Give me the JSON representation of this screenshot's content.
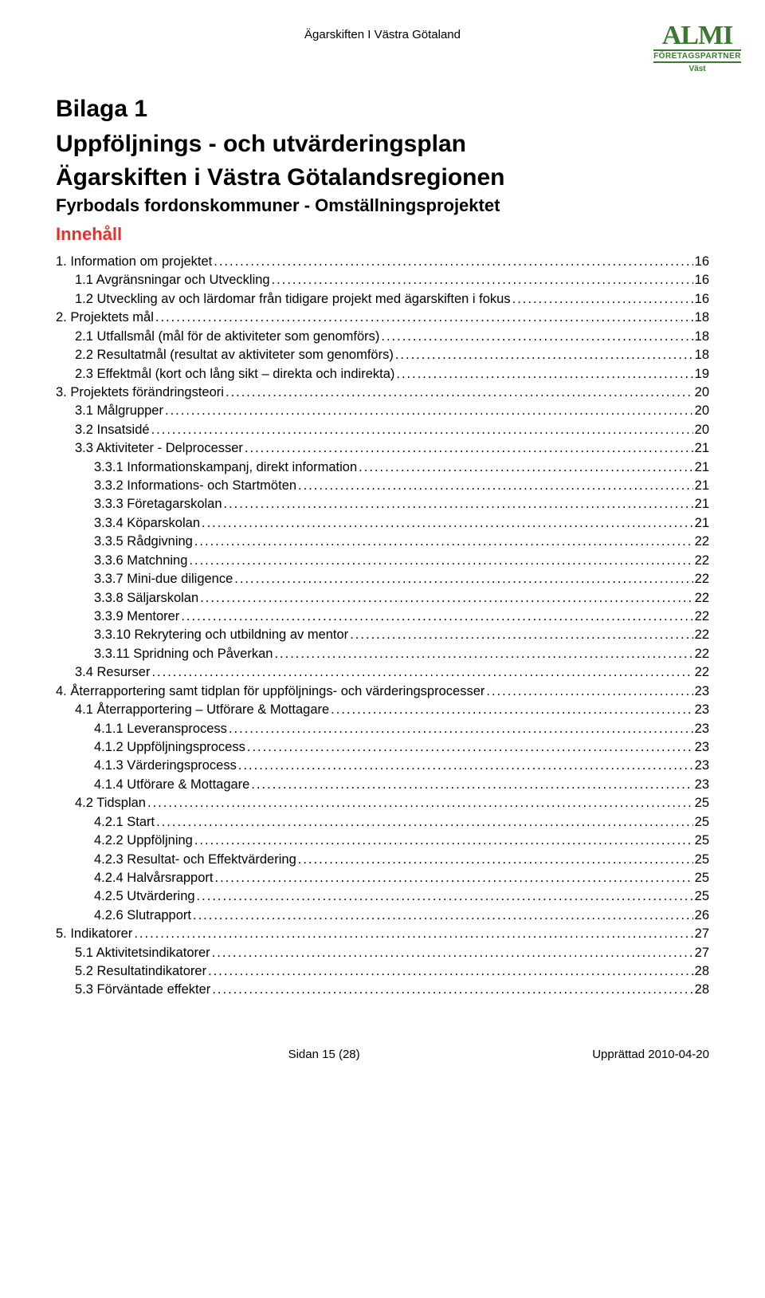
{
  "header": {
    "caption": "Ägarskiften I Västra Götaland",
    "logo_main": "ALMI",
    "logo_sub": "FÖRETAGSPARTNER",
    "logo_region": "Väst"
  },
  "titles": {
    "bilaga": "Bilaga 1",
    "main1": "Uppföljnings - och utvärderingsplan",
    "main2": "Ägarskiften i Västra Götalandsregionen",
    "subtitle": "Fyrbodals fordonskommuner - Omställningsprojektet",
    "innehall": "Innehåll"
  },
  "toc": [
    {
      "level": 1,
      "label": "1. Information om projektet",
      "page": "16"
    },
    {
      "level": 2,
      "label": "1.1 Avgränsningar och Utveckling",
      "page": "16"
    },
    {
      "level": 2,
      "label": "1.2 Utveckling av och lärdomar från tidigare projekt med ägarskiften i fokus",
      "page": "16"
    },
    {
      "level": 1,
      "label": "2. Projektets mål",
      "page": "18"
    },
    {
      "level": 2,
      "label": "2.1 Utfallsmål (mål för de aktiviteter som genomförs)",
      "page": "18"
    },
    {
      "level": 2,
      "label": "2.2 Resultatmål (resultat av aktiviteter som genomförs)",
      "page": "18"
    },
    {
      "level": 2,
      "label": "2.3 Effektmål (kort och lång sikt – direkta och indirekta)",
      "page": "19"
    },
    {
      "level": 1,
      "label": "3. Projektets förändringsteori",
      "page": "20"
    },
    {
      "level": 2,
      "label": "3.1 Målgrupper",
      "page": "20"
    },
    {
      "level": 2,
      "label": "3.2 Insatsidé",
      "page": "20"
    },
    {
      "level": 2,
      "label": "3.3 Aktiviteter - Delprocesser",
      "page": "21"
    },
    {
      "level": 3,
      "label": "3.3.1 Informationskampanj, direkt information",
      "page": "21"
    },
    {
      "level": 3,
      "label": "3.3.2 Informations- och Startmöten",
      "page": "21"
    },
    {
      "level": 3,
      "label": "3.3.3 Företagarskolan",
      "page": "21"
    },
    {
      "level": 3,
      "label": "3.3.4 Köparskolan",
      "page": "21"
    },
    {
      "level": 3,
      "label": "3.3.5 Rådgivning",
      "page": "22"
    },
    {
      "level": 3,
      "label": "3.3.6 Matchning",
      "page": "22"
    },
    {
      "level": 3,
      "label": "3.3.7 Mini-due diligence",
      "page": "22"
    },
    {
      "level": 3,
      "label": "3.3.8 Säljarskolan",
      "page": "22"
    },
    {
      "level": 3,
      "label": "3.3.9 Mentorer",
      "page": "22"
    },
    {
      "level": 3,
      "label": "3.3.10 Rekrytering och utbildning av mentor",
      "page": "22"
    },
    {
      "level": 3,
      "label": "3.3.11 Spridning och Påverkan",
      "page": "22"
    },
    {
      "level": 2,
      "label": "3.4 Resurser",
      "page": "22"
    },
    {
      "level": 1,
      "label": "4. Återrapportering samt tidplan för uppföljnings- och värderingsprocesser",
      "page": "23"
    },
    {
      "level": 2,
      "label": "4.1 Återrapportering – Utförare & Mottagare",
      "page": "23"
    },
    {
      "level": 3,
      "label": "4.1.1 Leveransprocess",
      "page": "23"
    },
    {
      "level": 3,
      "label": "4.1.2 Uppföljningsprocess",
      "page": "23"
    },
    {
      "level": 3,
      "label": "4.1.3 Värderingsprocess",
      "page": "23"
    },
    {
      "level": 3,
      "label": "4.1.4 Utförare & Mottagare",
      "page": "23"
    },
    {
      "level": 2,
      "label": "4.2 Tidsplan",
      "page": "25"
    },
    {
      "level": 3,
      "label": "4.2.1 Start",
      "page": "25"
    },
    {
      "level": 3,
      "label": "4.2.2 Uppföljning",
      "page": "25"
    },
    {
      "level": 3,
      "label": "4.2.3 Resultat- och Effektvärdering",
      "page": "25"
    },
    {
      "level": 3,
      "label": "4.2.4 Halvårsrapport",
      "page": "25"
    },
    {
      "level": 3,
      "label": "4.2.5 Utvärdering",
      "page": "25"
    },
    {
      "level": 3,
      "label": "4.2.6 Slutrapport",
      "page": "26"
    },
    {
      "level": 1,
      "label": "5. Indikatorer",
      "page": "27"
    },
    {
      "level": 2,
      "label": "5.1 Aktivitetsindikatorer",
      "page": "27"
    },
    {
      "level": 2,
      "label": "5.2 Resultatindikatorer",
      "page": "28"
    },
    {
      "level": 2,
      "label": "5.3 Förväntade effekter",
      "page": "28"
    }
  ],
  "footer": {
    "left": "Sidan 15 (28)",
    "right": "Upprättad 2010-04-20"
  },
  "styles": {
    "heading_color": "#000000",
    "innehall_color": "#e7302a",
    "logo_color": "#3a7a2e",
    "background": "#ffffff",
    "body_font": "Arial",
    "heading_font": "Century Gothic"
  }
}
